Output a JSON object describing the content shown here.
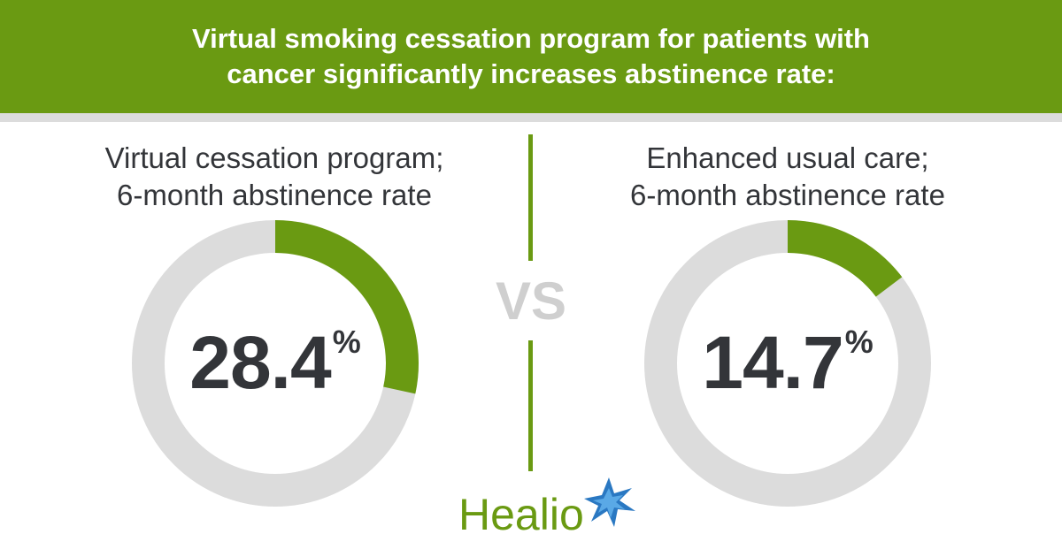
{
  "header": {
    "title_line1": "Virtual smoking cessation program for patients with",
    "title_line2": "cancer significantly increases abstinence rate:"
  },
  "vs_label": "VS",
  "logo": {
    "text": "Healio"
  },
  "colors": {
    "accent": "#6a9a12",
    "track": "#dcdcdc",
    "text": "#333539",
    "vs": "#cfcfcf"
  },
  "chart_data": [
    {
      "type": "pie",
      "title_line1": "Virtual cessation program;",
      "title_line2": "6-month abstinence rate",
      "value": 28.4,
      "value_label": "28.4",
      "unit": "%",
      "max": 100
    },
    {
      "type": "pie",
      "title_line1": "Enhanced usual care;",
      "title_line2": "6-month abstinence rate",
      "value": 14.7,
      "value_label": "14.7",
      "unit": "%",
      "max": 100
    }
  ]
}
